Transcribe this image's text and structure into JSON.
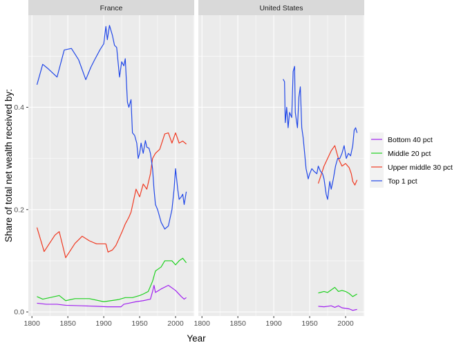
{
  "chart_data": {
    "type": "line",
    "xlabel": "Year",
    "ylabel": "Share of total net wealth received by:",
    "xlim": [
      1795,
      2026
    ],
    "ylim": [
      -0.008,
      0.58
    ],
    "x_ticks": [
      1800,
      1850,
      1900,
      1950,
      2000
    ],
    "y_ticks": [
      0.0,
      0.2,
      0.4
    ],
    "y_tick_labels": [
      "0.0",
      "0.2",
      "0.4"
    ],
    "grid": true,
    "legend_position": "right",
    "facets": [
      "France",
      "United States"
    ],
    "series": [
      {
        "name": "Bottom 40 pct",
        "color": "#a020f0",
        "values": {
          "France": [
            [
              1807,
              0.017
            ],
            [
              1820,
              0.015
            ],
            [
              1835,
              0.015
            ],
            [
              1847,
              0.013
            ],
            [
              1870,
              0.012
            ],
            [
              1890,
              0.011
            ],
            [
              1905,
              0.01
            ],
            [
              1915,
              0.01
            ],
            [
              1924,
              0.01
            ],
            [
              1928,
              0.015
            ],
            [
              1935,
              0.017
            ],
            [
              1945,
              0.02
            ],
            [
              1955,
              0.022
            ],
            [
              1965,
              0.025
            ],
            [
              1968,
              0.04
            ],
            [
              1970,
              0.052
            ],
            [
              1972,
              0.038
            ],
            [
              1980,
              0.045
            ],
            [
              1990,
              0.052
            ],
            [
              2000,
              0.042
            ],
            [
              2008,
              0.03
            ],
            [
              2012,
              0.025
            ],
            [
              2015,
              0.028
            ]
          ],
          "United States": [
            [
              1962,
              0.011
            ],
            [
              1970,
              0.01
            ],
            [
              1980,
              0.012
            ],
            [
              1985,
              0.009
            ],
            [
              1990,
              0.012
            ],
            [
              1995,
              0.008
            ],
            [
              2000,
              0.007
            ],
            [
              2005,
              0.006
            ],
            [
              2010,
              0.003
            ],
            [
              2016,
              0.005
            ]
          ]
        }
      },
      {
        "name": "Middle 20 pct",
        "color": "#1ed11e",
        "values": {
          "France": [
            [
              1807,
              0.03
            ],
            [
              1815,
              0.025
            ],
            [
              1825,
              0.028
            ],
            [
              1838,
              0.032
            ],
            [
              1847,
              0.022
            ],
            [
              1860,
              0.026
            ],
            [
              1880,
              0.026
            ],
            [
              1900,
              0.02
            ],
            [
              1910,
              0.022
            ],
            [
              1920,
              0.024
            ],
            [
              1930,
              0.028
            ],
            [
              1940,
              0.028
            ],
            [
              1950,
              0.032
            ],
            [
              1955,
              0.035
            ],
            [
              1962,
              0.04
            ],
            [
              1968,
              0.06
            ],
            [
              1972,
              0.08
            ],
            [
              1980,
              0.088
            ],
            [
              1985,
              0.1
            ],
            [
              1995,
              0.1
            ],
            [
              2000,
              0.092
            ],
            [
              2005,
              0.1
            ],
            [
              2010,
              0.105
            ],
            [
              2015,
              0.096
            ]
          ],
          "United States": [
            [
              1962,
              0.037
            ],
            [
              1970,
              0.04
            ],
            [
              1975,
              0.038
            ],
            [
              1985,
              0.048
            ],
            [
              1990,
              0.04
            ],
            [
              1995,
              0.042
            ],
            [
              2000,
              0.04
            ],
            [
              2005,
              0.036
            ],
            [
              2010,
              0.03
            ],
            [
              2016,
              0.035
            ]
          ]
        }
      },
      {
        "name": "Upper middle 30 pct",
        "color": "#f03820",
        "values": {
          "France": [
            [
              1807,
              0.165
            ],
            [
              1817,
              0.118
            ],
            [
              1832,
              0.15
            ],
            [
              1838,
              0.157
            ],
            [
              1847,
              0.106
            ],
            [
              1860,
              0.134
            ],
            [
              1870,
              0.148
            ],
            [
              1880,
              0.139
            ],
            [
              1890,
              0.133
            ],
            [
              1903,
              0.133
            ],
            [
              1906,
              0.117
            ],
            [
              1912,
              0.121
            ],
            [
              1917,
              0.13
            ],
            [
              1925,
              0.155
            ],
            [
              1930,
              0.172
            ],
            [
              1935,
              0.185
            ],
            [
              1938,
              0.195
            ],
            [
              1945,
              0.24
            ],
            [
              1950,
              0.225
            ],
            [
              1955,
              0.25
            ],
            [
              1960,
              0.24
            ],
            [
              1965,
              0.27
            ],
            [
              1968,
              0.3
            ],
            [
              1972,
              0.31
            ],
            [
              1978,
              0.318
            ],
            [
              1985,
              0.348
            ],
            [
              1990,
              0.35
            ],
            [
              1995,
              0.33
            ],
            [
              2000,
              0.35
            ],
            [
              2005,
              0.33
            ],
            [
              2010,
              0.334
            ],
            [
              2015,
              0.328
            ]
          ],
          "United States": [
            [
              1962,
              0.251
            ],
            [
              1970,
              0.285
            ],
            [
              1975,
              0.3
            ],
            [
              1980,
              0.315
            ],
            [
              1985,
              0.325
            ],
            [
              1990,
              0.3
            ],
            [
              1995,
              0.285
            ],
            [
              2000,
              0.29
            ],
            [
              2005,
              0.282
            ],
            [
              2008,
              0.27
            ],
            [
              2010,
              0.255
            ],
            [
              2013,
              0.248
            ],
            [
              2016,
              0.258
            ]
          ]
        }
      },
      {
        "name": "Top 1 pct",
        "color": "#2047e8",
        "values": {
          "France": [
            [
              1807,
              0.444
            ],
            [
              1815,
              0.484
            ],
            [
              1822,
              0.476
            ],
            [
              1835,
              0.459
            ],
            [
              1845,
              0.512
            ],
            [
              1855,
              0.515
            ],
            [
              1865,
              0.493
            ],
            [
              1875,
              0.454
            ],
            [
              1882,
              0.478
            ],
            [
              1887,
              0.492
            ],
            [
              1895,
              0.513
            ],
            [
              1900,
              0.524
            ],
            [
              1903,
              0.558
            ],
            [
              1905,
              0.532
            ],
            [
              1908,
              0.56
            ],
            [
              1912,
              0.541
            ],
            [
              1915,
              0.521
            ],
            [
              1918,
              0.517
            ],
            [
              1922,
              0.459
            ],
            [
              1925,
              0.489
            ],
            [
              1928,
              0.481
            ],
            [
              1930,
              0.495
            ],
            [
              1933,
              0.41
            ],
            [
              1935,
              0.4
            ],
            [
              1938,
              0.415
            ],
            [
              1940,
              0.35
            ],
            [
              1943,
              0.345
            ],
            [
              1946,
              0.33
            ],
            [
              1948,
              0.3
            ],
            [
              1950,
              0.31
            ],
            [
              1952,
              0.33
            ],
            [
              1955,
              0.31
            ],
            [
              1958,
              0.335
            ],
            [
              1960,
              0.322
            ],
            [
              1963,
              0.32
            ],
            [
              1965,
              0.31
            ],
            [
              1968,
              0.28
            ],
            [
              1970,
              0.24
            ],
            [
              1972,
              0.21
            ],
            [
              1975,
              0.2
            ],
            [
              1980,
              0.175
            ],
            [
              1985,
              0.162
            ],
            [
              1990,
              0.168
            ],
            [
              1995,
              0.2
            ],
            [
              1998,
              0.24
            ],
            [
              2000,
              0.28
            ],
            [
              2003,
              0.24
            ],
            [
              2005,
              0.22
            ],
            [
              2008,
              0.225
            ],
            [
              2010,
              0.23
            ],
            [
              2012,
              0.21
            ],
            [
              2015,
              0.235
            ]
          ],
          "United States": [
            [
              1913,
              0.455
            ],
            [
              1915,
              0.45
            ],
            [
              1916,
              0.37
            ],
            [
              1918,
              0.4
            ],
            [
              1920,
              0.36
            ],
            [
              1922,
              0.39
            ],
            [
              1925,
              0.38
            ],
            [
              1927,
              0.47
            ],
            [
              1929,
              0.48
            ],
            [
              1930,
              0.39
            ],
            [
              1933,
              0.36
            ],
            [
              1935,
              0.42
            ],
            [
              1937,
              0.44
            ],
            [
              1939,
              0.36
            ],
            [
              1941,
              0.34
            ],
            [
              1943,
              0.31
            ],
            [
              1945,
              0.28
            ],
            [
              1948,
              0.26
            ],
            [
              1950,
              0.27
            ],
            [
              1953,
              0.28
            ],
            [
              1956,
              0.275
            ],
            [
              1960,
              0.27
            ],
            [
              1962,
              0.285
            ],
            [
              1965,
              0.275
            ],
            [
              1968,
              0.27
            ],
            [
              1970,
              0.26
            ],
            [
              1973,
              0.23
            ],
            [
              1975,
              0.22
            ],
            [
              1978,
              0.255
            ],
            [
              1980,
              0.24
            ],
            [
              1983,
              0.26
            ],
            [
              1986,
              0.285
            ],
            [
              1989,
              0.3
            ],
            [
              1992,
              0.3
            ],
            [
              1995,
              0.31
            ],
            [
              1998,
              0.325
            ],
            [
              2001,
              0.3
            ],
            [
              2004,
              0.31
            ],
            [
              2007,
              0.305
            ],
            [
              2010,
              0.325
            ],
            [
              2012,
              0.355
            ],
            [
              2014,
              0.36
            ],
            [
              2016,
              0.35
            ]
          ]
        }
      }
    ]
  }
}
